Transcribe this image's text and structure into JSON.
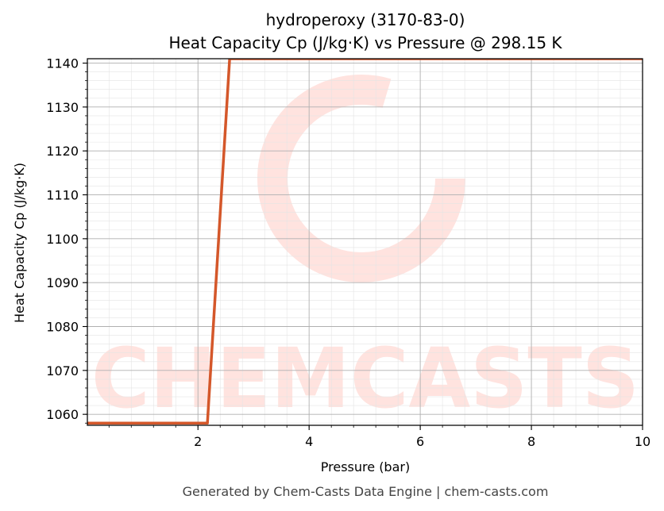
{
  "chart_data": {
    "type": "line",
    "title": [
      "hydroperoxy (3170-83-0)",
      "Heat Capacity Cp (J/kg·K) vs Pressure @ 298.15 K"
    ],
    "xlabel": "Pressure (bar)",
    "ylabel": "Heat Capacity Cp (J/kg·K)",
    "xlim": [
      0.01,
      10
    ],
    "ylim": [
      1057.5,
      1141
    ],
    "x_ticks": [
      2,
      4,
      6,
      8,
      10
    ],
    "y_ticks": [
      1060,
      1070,
      1080,
      1090,
      1100,
      1110,
      1120,
      1130,
      1140
    ],
    "grid": true,
    "series": [
      {
        "color": "#d4572a",
        "x": [
          0.01,
          2.17,
          2.57,
          10
        ],
        "y": [
          1058,
          1058,
          1141,
          1141
        ]
      }
    ]
  },
  "footer": "Generated by Chem-Casts Data Engine | chem-casts.com",
  "watermark": "CHEMCASTS",
  "colors": {
    "line": "#d4572a",
    "watermark": "#ffe3df",
    "grid_major": "#b0b0b0",
    "grid_minor": "#e4e4e4"
  }
}
